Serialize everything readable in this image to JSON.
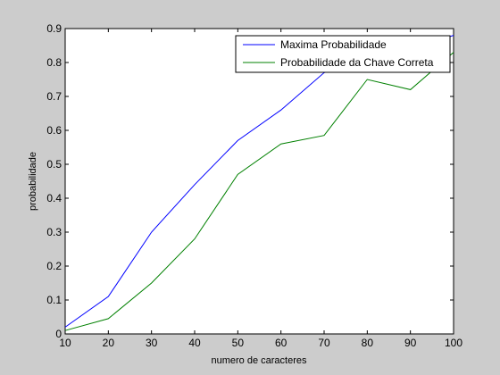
{
  "chart_data": {
    "type": "line",
    "title": "",
    "xlabel": "numero de caracteres",
    "ylabel": "probabilidade",
    "xlim": [
      10,
      100
    ],
    "ylim": [
      0,
      0.9
    ],
    "x_ticks": [
      10,
      20,
      30,
      40,
      50,
      60,
      70,
      80,
      90,
      100
    ],
    "x_tick_labels": [
      "10",
      "20",
      "30",
      "40",
      "50",
      "60",
      "70",
      "80",
      "90",
      "100"
    ],
    "y_ticks": [
      0,
      0.1,
      0.2,
      0.3,
      0.4,
      0.5,
      0.6,
      0.7,
      0.8,
      0.9
    ],
    "y_tick_labels": [
      "0",
      "0.1",
      "0.2",
      "0.3",
      "0.4",
      "0.5",
      "0.6",
      "0.7",
      "0.8",
      "0.9"
    ],
    "grid": false,
    "legend_position": "top-right",
    "background_color": "#cccccc",
    "plot_background_color": "#ffffff",
    "series": [
      {
        "name": "Maxima Probabilidade",
        "color": "#0000ff",
        "x": [
          10,
          20,
          30,
          40,
          50,
          60,
          70,
          80,
          90,
          100
        ],
        "values": [
          0.02,
          0.11,
          0.3,
          0.44,
          0.57,
          0.66,
          0.77,
          0.81,
          0.84,
          0.88
        ]
      },
      {
        "name": "Probabilidade da Chave Correta",
        "color": "#008000",
        "x": [
          10,
          20,
          30,
          40,
          50,
          60,
          70,
          80,
          90,
          100
        ],
        "values": [
          0.01,
          0.045,
          0.15,
          0.28,
          0.47,
          0.56,
          0.585,
          0.75,
          0.72,
          0.83
        ]
      }
    ]
  }
}
